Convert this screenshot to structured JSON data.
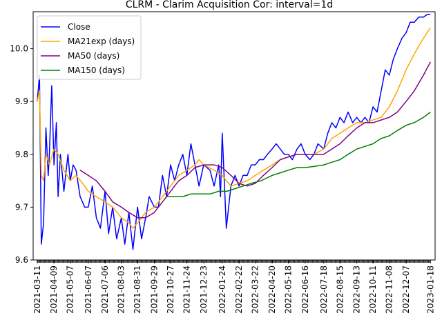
{
  "chart_data": {
    "type": "line",
    "title": "CLRM - Clarim Acquisition Cor: interval=1d",
    "xlabel": "",
    "ylabel": "",
    "ylim": [
      9.6,
      10.07
    ],
    "yticks": [
      "9.6",
      "9.7",
      "9.8",
      "9.9",
      "10.0"
    ],
    "ytick_values": [
      9.6,
      9.7,
      9.8,
      9.9,
      10.0
    ],
    "xlim": [
      "2021-03-04",
      "2023-01-26"
    ],
    "xticks": [
      "2021-03-11",
      "2021-04-09",
      "2021-05-07",
      "2021-06-07",
      "2021-07-06",
      "2021-08-03",
      "2021-08-31",
      "2021-09-29",
      "2021-10-27",
      "2021-11-24",
      "2021-12-23",
      "2022-01-24",
      "2022-02-22",
      "2022-03-22",
      "2022-04-20",
      "2022-05-18",
      "2022-06-16",
      "2022-07-18",
      "2022-08-15",
      "2022-09-13",
      "2022-10-11",
      "2022-11-08",
      "2022-12-07",
      "2023-01-18"
    ],
    "grid": false,
    "legend": "upper left",
    "series": [
      {
        "name": "Close",
        "color": "#0000ff",
        "x": [
          "2021-03-11",
          "2021-03-15",
          "2021-03-18",
          "2021-03-22",
          "2021-03-26",
          "2021-03-30",
          "2021-04-01",
          "2021-04-05",
          "2021-04-09",
          "2021-04-13",
          "2021-04-16",
          "2021-04-20",
          "2021-04-26",
          "2021-05-03",
          "2021-05-07",
          "2021-05-12",
          "2021-05-17",
          "2021-05-24",
          "2021-06-01",
          "2021-06-07",
          "2021-06-14",
          "2021-06-21",
          "2021-06-28",
          "2021-07-06",
          "2021-07-12",
          "2021-07-19",
          "2021-07-26",
          "2021-08-03",
          "2021-08-09",
          "2021-08-16",
          "2021-08-23",
          "2021-08-27",
          "2021-08-31",
          "2021-09-07",
          "2021-09-14",
          "2021-09-20",
          "2021-09-29",
          "2021-10-06",
          "2021-10-13",
          "2021-10-20",
          "2021-10-27",
          "2021-11-03",
          "2021-11-10",
          "2021-11-17",
          "2021-11-24",
          "2021-12-01",
          "2021-12-08",
          "2021-12-15",
          "2021-12-23",
          "2022-01-03",
          "2022-01-10",
          "2022-01-18",
          "2022-01-21",
          "2022-01-24",
          "2022-01-31",
          "2022-02-08",
          "2022-02-15",
          "2022-02-22",
          "2022-03-01",
          "2022-03-08",
          "2022-03-15",
          "2022-03-22",
          "2022-03-29",
          "2022-04-05",
          "2022-04-12",
          "2022-04-20",
          "2022-04-27",
          "2022-05-04",
          "2022-05-11",
          "2022-05-18",
          "2022-05-25",
          "2022-06-02",
          "2022-06-09",
          "2022-06-16",
          "2022-06-24",
          "2022-07-01",
          "2022-07-08",
          "2022-07-18",
          "2022-07-25",
          "2022-08-01",
          "2022-08-08",
          "2022-08-15",
          "2022-08-22",
          "2022-08-29",
          "2022-09-06",
          "2022-09-13",
          "2022-09-20",
          "2022-09-27",
          "2022-10-04",
          "2022-10-11",
          "2022-10-18",
          "2022-10-25",
          "2022-11-01",
          "2022-11-08",
          "2022-11-15",
          "2022-11-22",
          "2022-11-30",
          "2022-12-07",
          "2022-12-14",
          "2022-12-21",
          "2022-12-29",
          "2023-01-06",
          "2023-01-13",
          "2023-01-18"
        ],
        "values": [
          9.9,
          9.95,
          9.63,
          9.67,
          9.85,
          9.76,
          9.8,
          9.93,
          9.78,
          9.86,
          9.72,
          9.8,
          9.73,
          9.8,
          9.75,
          9.78,
          9.77,
          9.72,
          9.7,
          9.7,
          9.74,
          9.68,
          9.66,
          9.73,
          9.65,
          9.7,
          9.64,
          9.68,
          9.63,
          9.69,
          9.62,
          9.66,
          9.7,
          9.64,
          9.68,
          9.72,
          9.7,
          9.7,
          9.76,
          9.72,
          9.78,
          9.75,
          9.78,
          9.8,
          9.76,
          9.82,
          9.78,
          9.74,
          9.78,
          9.77,
          9.74,
          9.78,
          9.72,
          9.84,
          9.66,
          9.74,
          9.76,
          9.74,
          9.76,
          9.76,
          9.78,
          9.78,
          9.79,
          9.79,
          9.8,
          9.81,
          9.82,
          9.81,
          9.8,
          9.8,
          9.79,
          9.81,
          9.82,
          9.8,
          9.79,
          9.8,
          9.82,
          9.81,
          9.84,
          9.86,
          9.85,
          9.87,
          9.86,
          9.88,
          9.86,
          9.87,
          9.86,
          9.87,
          9.86,
          9.89,
          9.88,
          9.92,
          9.96,
          9.95,
          9.98,
          10.0,
          10.02,
          10.03,
          10.05,
          10.05,
          10.06,
          10.06,
          10.065,
          10.065
        ]
      },
      {
        "name": "MA21exp (days)",
        "color": "#ffa500",
        "x": [
          "2021-03-11",
          "2021-03-15",
          "2021-03-18",
          "2021-03-22",
          "2021-03-26",
          "2021-04-01",
          "2021-04-09",
          "2021-04-16",
          "2021-04-26",
          "2021-05-07",
          "2021-05-17",
          "2021-06-01",
          "2021-06-07",
          "2021-06-21",
          "2021-07-06",
          "2021-07-19",
          "2021-08-03",
          "2021-08-16",
          "2021-08-23",
          "2021-08-31",
          "2021-09-07",
          "2021-09-14",
          "2021-09-29",
          "2021-10-13",
          "2021-10-27",
          "2021-11-10",
          "2021-11-24",
          "2021-12-08",
          "2021-12-15",
          "2021-12-23",
          "2022-01-10",
          "2022-01-24",
          "2022-01-31",
          "2022-02-08",
          "2022-02-22",
          "2022-03-08",
          "2022-03-22",
          "2022-04-05",
          "2022-04-20",
          "2022-05-04",
          "2022-05-18",
          "2022-06-02",
          "2022-06-16",
          "2022-07-01",
          "2022-07-18",
          "2022-08-01",
          "2022-08-15",
          "2022-08-29",
          "2022-09-13",
          "2022-09-27",
          "2022-10-11",
          "2022-10-25",
          "2022-11-08",
          "2022-11-22",
          "2022-12-07",
          "2022-12-21",
          "2023-01-06",
          "2023-01-18"
        ],
        "values": [
          9.9,
          9.92,
          9.76,
          9.75,
          9.8,
          9.78,
          9.81,
          9.8,
          9.77,
          9.75,
          9.76,
          9.74,
          9.73,
          9.72,
          9.71,
          9.7,
          9.68,
          9.67,
          9.66,
          9.67,
          9.68,
          9.69,
          9.7,
          9.72,
          9.74,
          9.76,
          9.77,
          9.78,
          9.79,
          9.78,
          9.77,
          9.76,
          9.75,
          9.74,
          9.745,
          9.75,
          9.76,
          9.77,
          9.78,
          9.79,
          9.795,
          9.8,
          9.8,
          9.8,
          9.81,
          9.83,
          9.84,
          9.85,
          9.86,
          9.86,
          9.865,
          9.87,
          9.89,
          9.92,
          9.96,
          9.99,
          10.02,
          10.04
        ]
      },
      {
        "name": "MA50 (days)",
        "color": "#800080",
        "x": [
          "2021-05-24",
          "2021-06-07",
          "2021-06-21",
          "2021-07-06",
          "2021-07-19",
          "2021-08-03",
          "2021-08-16",
          "2021-08-31",
          "2021-09-14",
          "2021-09-29",
          "2021-10-13",
          "2021-10-27",
          "2021-11-10",
          "2021-11-24",
          "2021-12-08",
          "2021-12-23",
          "2022-01-10",
          "2022-01-24",
          "2022-02-08",
          "2022-02-22",
          "2022-03-08",
          "2022-03-22",
          "2022-04-05",
          "2022-04-20",
          "2022-05-04",
          "2022-05-18",
          "2022-06-02",
          "2022-06-16",
          "2022-07-01",
          "2022-07-18",
          "2022-08-01",
          "2022-08-15",
          "2022-08-29",
          "2022-09-13",
          "2022-09-27",
          "2022-10-11",
          "2022-10-25",
          "2022-11-08",
          "2022-11-22",
          "2022-12-07",
          "2022-12-21",
          "2023-01-06",
          "2023-01-18"
        ],
        "values": [
          9.77,
          9.76,
          9.75,
          9.73,
          9.71,
          9.7,
          9.69,
          9.68,
          9.68,
          9.69,
          9.71,
          9.73,
          9.75,
          9.76,
          9.775,
          9.78,
          9.78,
          9.775,
          9.76,
          9.745,
          9.74,
          9.745,
          9.76,
          9.775,
          9.79,
          9.795,
          9.8,
          9.8,
          9.8,
          9.8,
          9.81,
          9.82,
          9.835,
          9.85,
          9.86,
          9.86,
          9.865,
          9.87,
          9.88,
          9.9,
          9.92,
          9.95,
          9.975
        ]
      },
      {
        "name": "MA150 (days)",
        "color": "#008000",
        "x": [
          "2021-10-20",
          "2021-11-03",
          "2021-11-17",
          "2021-12-01",
          "2021-12-15",
          "2022-01-03",
          "2022-01-18",
          "2022-02-01",
          "2022-02-15",
          "2022-03-01",
          "2022-03-15",
          "2022-04-01",
          "2022-04-20",
          "2022-05-04",
          "2022-05-18",
          "2022-06-02",
          "2022-06-16",
          "2022-07-01",
          "2022-07-18",
          "2022-08-01",
          "2022-08-15",
          "2022-08-29",
          "2022-09-13",
          "2022-09-27",
          "2022-10-11",
          "2022-10-25",
          "2022-11-08",
          "2022-11-22",
          "2022-12-07",
          "2022-12-21",
          "2023-01-06",
          "2023-01-18"
        ],
        "values": [
          9.72,
          9.72,
          9.72,
          9.725,
          9.725,
          9.725,
          9.73,
          9.73,
          9.735,
          9.74,
          9.745,
          9.75,
          9.76,
          9.765,
          9.77,
          9.775,
          9.775,
          9.777,
          9.78,
          9.785,
          9.79,
          9.8,
          9.81,
          9.815,
          9.82,
          9.83,
          9.835,
          9.845,
          9.855,
          9.86,
          9.87,
          9.88
        ]
      }
    ]
  }
}
